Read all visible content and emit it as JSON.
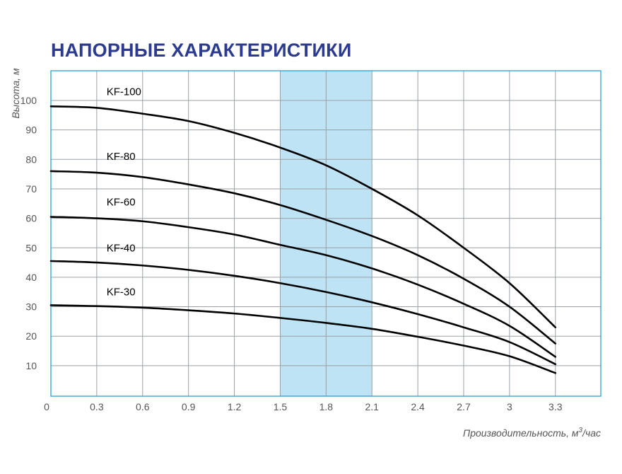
{
  "chart_data": {
    "type": "line",
    "title": "НАПОРНЫЕ ХАРАКТЕРИСТИКИ",
    "xlabel": "Производительность, м",
    "xlabel_sup": "3",
    "xlabel_suffix": "/час",
    "ylabel": "Высота, м",
    "xlim": [
      0,
      3.6
    ],
    "ylim": [
      0,
      110
    ],
    "x_ticks": [
      0,
      0.3,
      0.6,
      0.9,
      1.2,
      1.5,
      1.8,
      2.1,
      2.4,
      2.7,
      3,
      3.3
    ],
    "x_tick_labels": [
      "0",
      "0.3",
      "0.6",
      "0.9",
      "1.2",
      "1.5",
      "1.8",
      "2.1",
      "2.4",
      "2.7",
      "3",
      "3.3"
    ],
    "y_ticks": [
      10,
      20,
      30,
      40,
      50,
      60,
      70,
      80,
      90,
      100
    ],
    "y_tick_labels": [
      "10",
      "20",
      "30",
      "40",
      "50",
      "60",
      "70",
      "80",
      "90",
      "100"
    ],
    "grid": true,
    "highlight_band": {
      "x_from": 1.5,
      "x_to": 2.1,
      "color": "#bde3f5"
    },
    "colors": {
      "title": "#2c3a8f",
      "frame": "#2aa0d6",
      "grid": "#9aa0a6",
      "band": "#bde3f5",
      "curve": "#000000",
      "tick_text": "#555555"
    },
    "series": [
      {
        "name": "KF-100",
        "label_x": 0.35,
        "label_y": 103,
        "x": [
          0,
          0.3,
          0.6,
          0.9,
          1.2,
          1.5,
          1.8,
          2.1,
          2.4,
          2.7,
          3.0,
          3.3
        ],
        "y": [
          98,
          97.5,
          95.5,
          93,
          89,
          84,
          78,
          70,
          61,
          50,
          38,
          23
        ]
      },
      {
        "name": "KF-80",
        "label_x": 0.35,
        "label_y": 81,
        "x": [
          0,
          0.3,
          0.6,
          0.9,
          1.2,
          1.5,
          1.8,
          2.1,
          2.4,
          2.7,
          3.0,
          3.3
        ],
        "y": [
          76,
          75.5,
          74,
          71.5,
          68.5,
          64.5,
          59.5,
          54,
          47.5,
          39.5,
          30,
          17.5
        ]
      },
      {
        "name": "KF-60",
        "label_x": 0.35,
        "label_y": 65.5,
        "x": [
          0,
          0.3,
          0.6,
          0.9,
          1.2,
          1.5,
          1.8,
          2.1,
          2.4,
          2.7,
          3.0,
          3.3
        ],
        "y": [
          60.5,
          60,
          59,
          57,
          54.5,
          51,
          47.5,
          43,
          37.5,
          31,
          23.5,
          13
        ]
      },
      {
        "name": "KF-40",
        "label_x": 0.35,
        "label_y": 50,
        "x": [
          0,
          0.3,
          0.6,
          0.9,
          1.2,
          1.5,
          1.8,
          2.1,
          2.4,
          2.7,
          3.0,
          3.3
        ],
        "y": [
          45.5,
          45,
          44,
          42.5,
          40.5,
          38,
          35,
          31.5,
          27.5,
          23,
          18,
          10.5
        ]
      },
      {
        "name": "KF-30",
        "label_x": 0.35,
        "label_y": 35,
        "x": [
          0,
          0.3,
          0.6,
          0.9,
          1.2,
          1.5,
          1.8,
          2.1,
          2.4,
          2.7,
          3.0,
          3.3
        ],
        "y": [
          30.5,
          30.2,
          29.7,
          28.8,
          27.7,
          26.2,
          24.5,
          22.5,
          19.8,
          16.8,
          13.2,
          7.5
        ]
      }
    ]
  }
}
